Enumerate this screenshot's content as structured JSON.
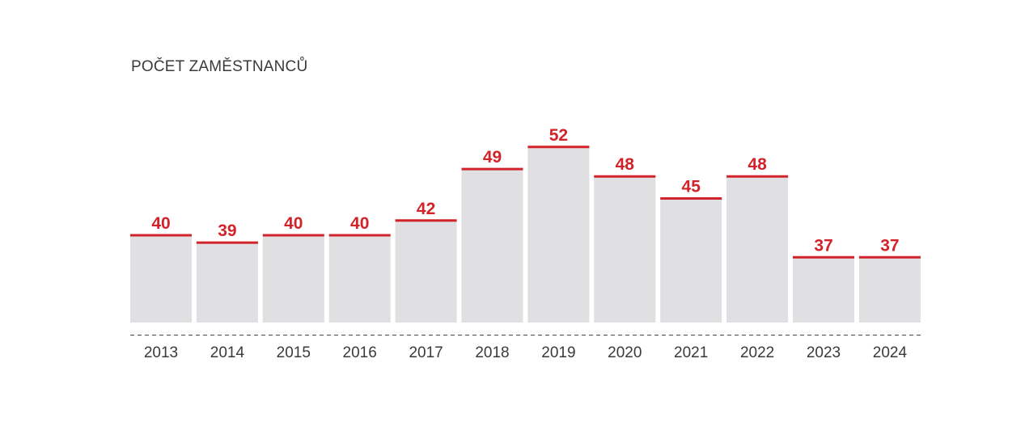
{
  "title": "POČET ZAMĚSTNANCŮ",
  "colors": {
    "bar": "#e0dfe1",
    "accent": "#d2232a",
    "axis": "#444444",
    "label": "#3a3a3a"
  },
  "chart_data": {
    "type": "bar",
    "title": "POČET ZAMĚSTNANCŮ",
    "xlabel": "",
    "ylabel": "",
    "grid": false,
    "categories": [
      "2013",
      "2014",
      "2015",
      "2016",
      "2017",
      "2018",
      "2019",
      "2020",
      "2021",
      "2022",
      "2023",
      "2024"
    ],
    "values": [
      40,
      39,
      40,
      40,
      42,
      49,
      52,
      48,
      45,
      48,
      37,
      37
    ]
  }
}
